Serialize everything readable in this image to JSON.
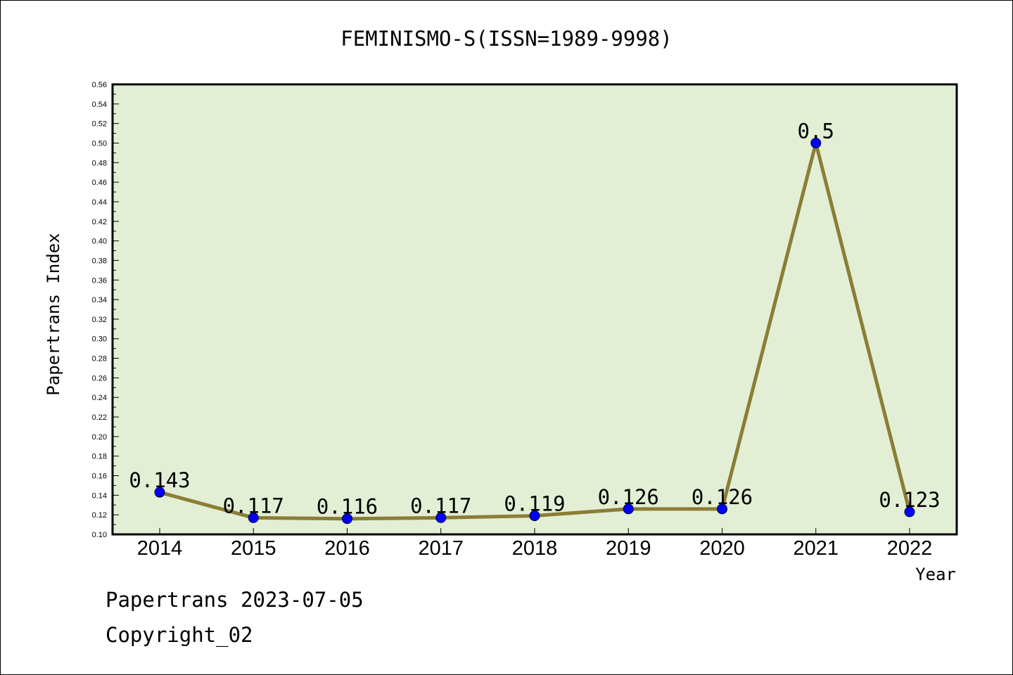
{
  "chart_data": {
    "type": "line",
    "title": "FEMINISMO-S(ISSN=1989-9998)",
    "xlabel": "Year",
    "ylabel": "Papertrans Index",
    "categories": [
      "2014",
      "2015",
      "2016",
      "2017",
      "2018",
      "2019",
      "2020",
      "2021",
      "2022"
    ],
    "values": [
      0.143,
      0.117,
      0.116,
      0.117,
      0.119,
      0.126,
      0.126,
      0.5,
      0.123
    ],
    "data_labels": [
      "0.143",
      "0.117",
      "0.116",
      "0.117",
      "0.119",
      "0.126",
      "0.126",
      "0.5",
      "0.123"
    ],
    "ylim": [
      0.1,
      0.56
    ],
    "yticks": [
      "0.10",
      "0.12",
      "0.14",
      "0.16",
      "0.18",
      "0.20",
      "0.22",
      "0.24",
      "0.26",
      "0.28",
      "0.30",
      "0.32",
      "0.34",
      "0.36",
      "0.38",
      "0.40",
      "0.42",
      "0.44",
      "0.46",
      "0.48",
      "0.50",
      "0.52",
      "0.54",
      "0.56"
    ],
    "grid": false,
    "colors": {
      "plot_background": "#e2efd5",
      "line": "#8b7d35",
      "marker": "#0000ff"
    }
  },
  "footer": {
    "date_line": "Papertrans 2023-07-05",
    "copyright": "Copyright_02"
  }
}
